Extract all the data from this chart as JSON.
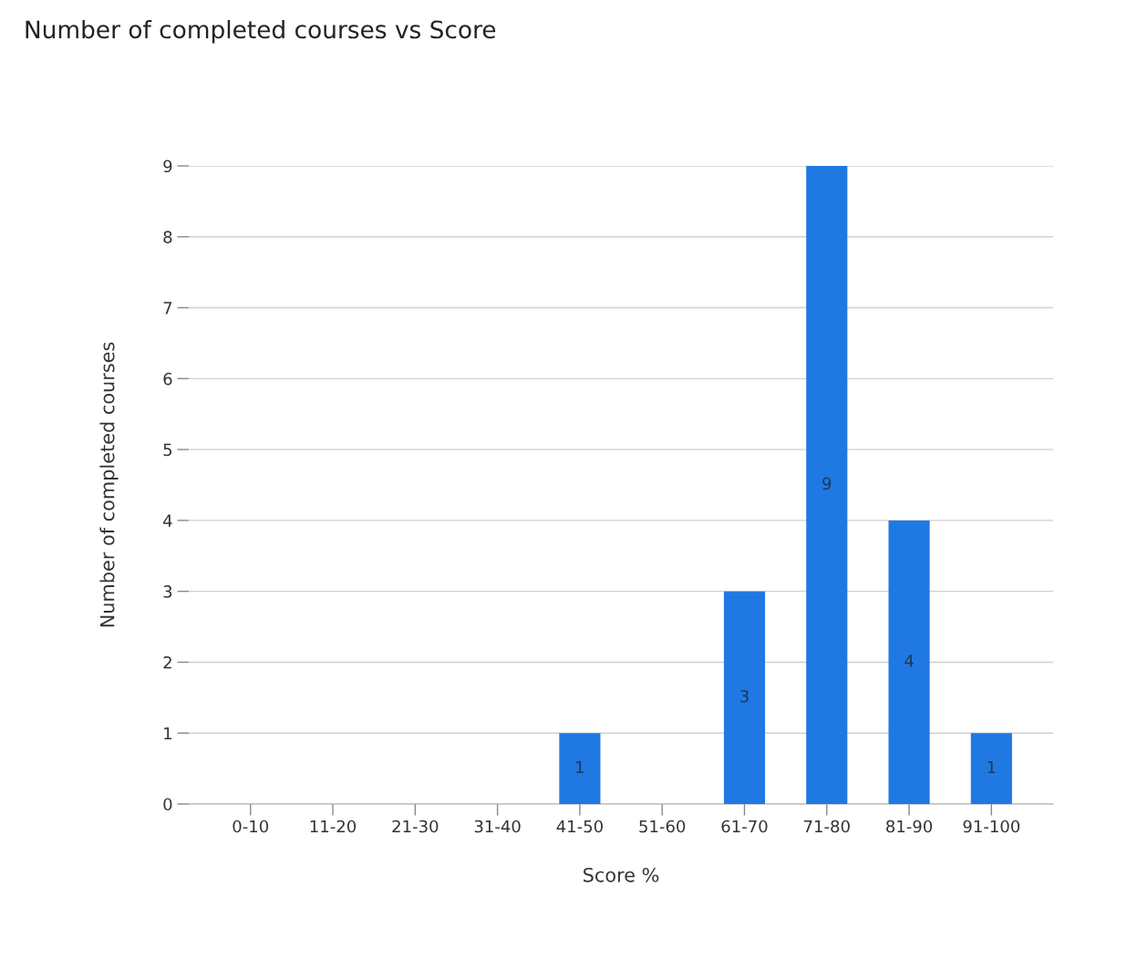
{
  "chart_data": {
    "type": "bar",
    "title": "Number of completed courses vs Score",
    "xlabel": "Score %",
    "ylabel": "Number of completed courses",
    "categories": [
      "0-10",
      "11-20",
      "21-30",
      "31-40",
      "41-50",
      "51-60",
      "61-70",
      "71-80",
      "81-90",
      "91-100"
    ],
    "values": [
      0,
      0,
      0,
      0,
      1,
      0,
      3,
      9,
      4,
      1
    ],
    "value_labels": [
      null,
      null,
      null,
      null,
      "1",
      null,
      "3",
      "9",
      "4",
      "1"
    ],
    "color": "#2079e3",
    "ylim": [
      0,
      9
    ],
    "yticks": [
      0,
      1,
      2,
      3,
      4,
      5,
      6,
      7,
      8,
      9
    ],
    "grid": "y",
    "legend": false
  }
}
